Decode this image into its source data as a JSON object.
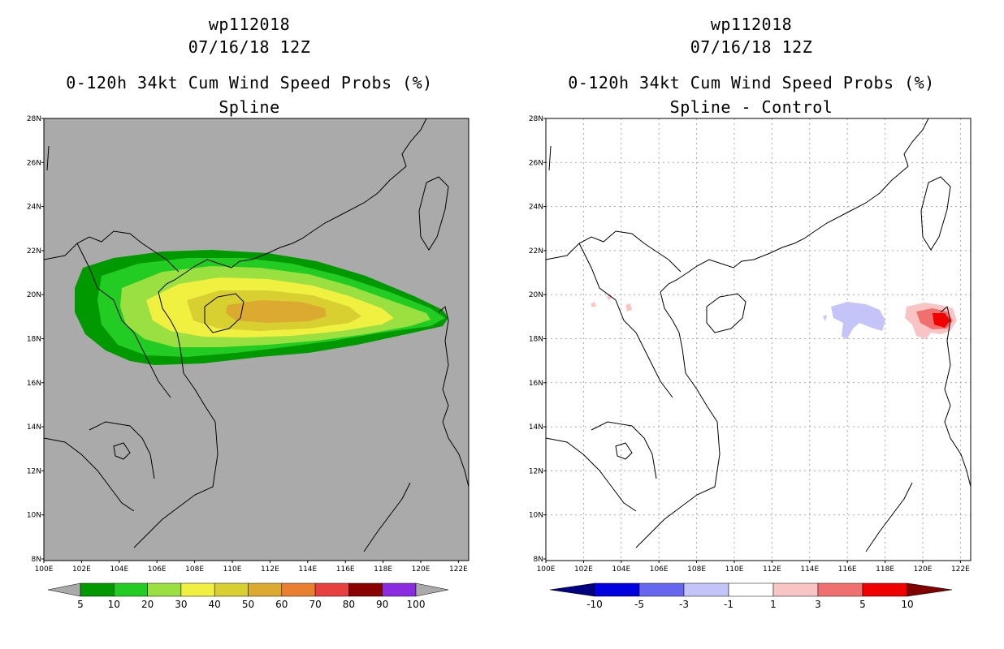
{
  "panels": [
    {
      "storm_id": "wp112018",
      "datetime": "07/16/18 12Z",
      "product": "0-120h 34kt Cum Wind Speed Probs (%)",
      "subtitle": "Spline",
      "lat_labels": [
        "28N",
        "26N",
        "24N",
        "22N",
        "20N",
        "18N",
        "16N",
        "14N",
        "12N",
        "10N",
        "8N"
      ],
      "lon_labels": [
        "100E",
        "102E",
        "104E",
        "106E",
        "108E",
        "110E",
        "112E",
        "114E",
        "116E",
        "118E",
        "120E",
        "122E"
      ],
      "colorbar": {
        "labels": [
          "5",
          "10",
          "20",
          "30",
          "40",
          "50",
          "60",
          "70",
          "80",
          "90",
          "100"
        ],
        "colors": [
          "#009a00",
          "#22cc22",
          "#99e040",
          "#f0f040",
          "#d8d030",
          "#dcaa30",
          "#e88030",
          "#e84040",
          "#8b0000",
          "#8a2be2"
        ],
        "below_color": "#aaaaaa",
        "above_color": "#aaaaaa"
      }
    },
    {
      "storm_id": "wp112018",
      "datetime": "07/16/18 12Z",
      "product": "0-120h 34kt Cum Wind Speed Probs (%)",
      "subtitle": "Spline - Control",
      "lat_labels": [
        "28N",
        "26N",
        "24N",
        "22N",
        "20N",
        "18N",
        "16N",
        "14N",
        "12N",
        "10N",
        "8N"
      ],
      "lon_labels": [
        "100E",
        "102E",
        "104E",
        "106E",
        "108E",
        "110E",
        "112E",
        "114E",
        "116E",
        "118E",
        "120E",
        "122E"
      ],
      "colorbar": {
        "labels": [
          "-10",
          "-5",
          "-3",
          "-1",
          "1",
          "3",
          "5",
          "10"
        ],
        "colors": [
          "#0000e0",
          "#6666ee",
          "#c4c4f8",
          "#ffffff",
          "#f8c4c4",
          "#f07070",
          "#f00000"
        ],
        "below_color": "#000080",
        "above_color": "#800000"
      }
    }
  ]
}
